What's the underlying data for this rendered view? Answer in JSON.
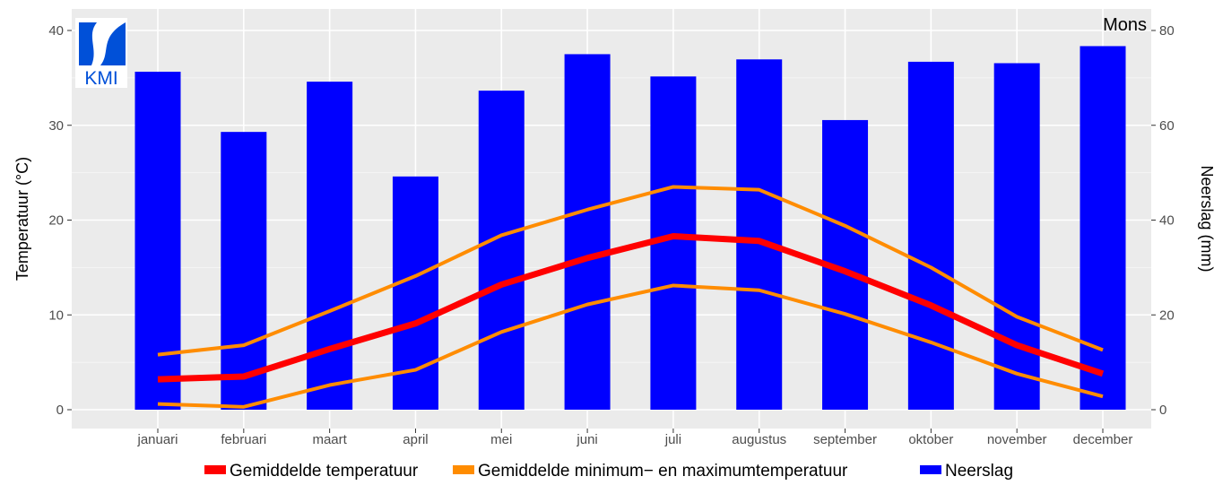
{
  "chart_data": {
    "type": "bar+line",
    "station": "Mons",
    "logo_text": "KMI",
    "categories": [
      "januari",
      "februari",
      "maart",
      "april",
      "mei",
      "juni",
      "juli",
      "augustus",
      "september",
      "oktober",
      "november",
      "december"
    ],
    "y_left": {
      "label": "Temperatuur (°C)",
      "lim": [
        0,
        40
      ],
      "ticks": [
        0,
        10,
        20,
        30,
        40
      ]
    },
    "y_right": {
      "label": "Neerslag (mm)",
      "lim": [
        0,
        80
      ],
      "ticks": [
        0,
        20,
        40,
        60,
        80
      ]
    },
    "grid": true,
    "legend_position": "bottom",
    "series": [
      {
        "name": "Neerslag",
        "type": "bar",
        "axis": "right",
        "color": "#0000ff",
        "values": [
          71.3,
          58.6,
          69.2,
          49.2,
          67.3,
          75.0,
          70.3,
          73.9,
          61.1,
          73.4,
          73.1,
          76.7
        ]
      },
      {
        "name": "Gemiddelde temperatuur",
        "type": "line",
        "axis": "left",
        "color": "#ff0000",
        "values": [
          3.2,
          3.5,
          6.4,
          9.1,
          13.2,
          16.0,
          18.3,
          17.8,
          14.6,
          11.0,
          6.8,
          3.8
        ]
      },
      {
        "name": "Gemiddelde minimum− en maximumtemperatuur",
        "type": "line",
        "axis": "left",
        "color": "#ff8c00",
        "values_max": [
          5.8,
          6.8,
          10.4,
          14.1,
          18.4,
          21.1,
          23.5,
          23.2,
          19.4,
          15.0,
          9.8,
          6.3
        ],
        "values_min": [
          0.6,
          0.3,
          2.6,
          4.2,
          8.2,
          11.1,
          13.1,
          12.6,
          10.1,
          7.1,
          3.8,
          1.4
        ]
      }
    ]
  }
}
